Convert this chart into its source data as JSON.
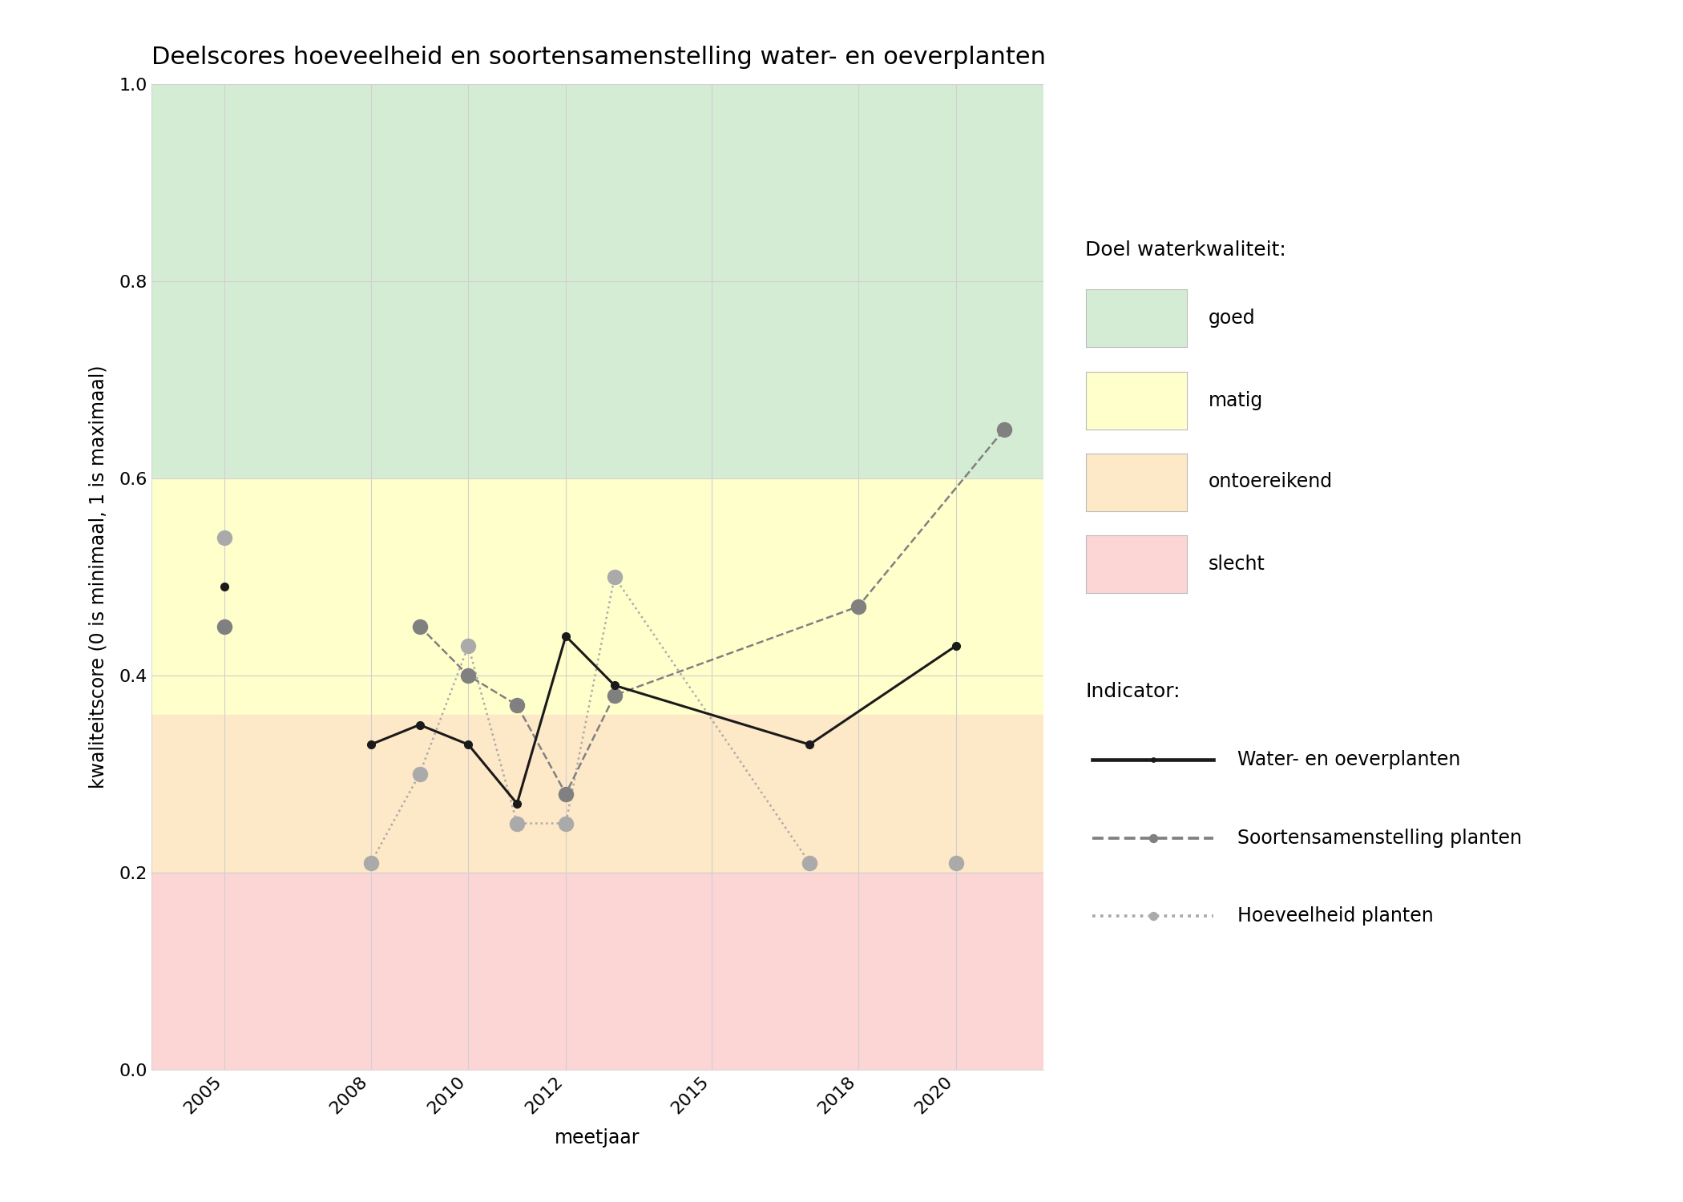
{
  "title": "Deelscores hoeveelheid en soortensamenstelling water- en oeverplanten",
  "xlabel": "meetjaar",
  "ylabel": "kwaliteitscore (0 is minimaal, 1 is maximaal)",
  "xlim": [
    2003.5,
    2021.8
  ],
  "ylim": [
    0.0,
    1.0
  ],
  "xticks": [
    2005,
    2008,
    2010,
    2012,
    2015,
    2018,
    2020
  ],
  "yticks": [
    0.0,
    0.2,
    0.4,
    0.6,
    0.8,
    1.0
  ],
  "bg_color": "#ffffff",
  "zones": [
    {
      "name": "goed",
      "ymin": 0.6,
      "ymax": 1.0,
      "color": "#d5ecd4"
    },
    {
      "name": "matig",
      "ymin": 0.36,
      "ymax": 0.6,
      "color": "#ffffcc"
    },
    {
      "name": "ontoereikend",
      "ymin": 0.2,
      "ymax": 0.36,
      "color": "#fde8c8"
    },
    {
      "name": "slecht",
      "ymin": 0.0,
      "ymax": 0.2,
      "color": "#fcd5d5"
    }
  ],
  "water_oever": {
    "years": [
      2005,
      2006,
      2008,
      2009,
      2010,
      2011,
      2012,
      2013,
      2017,
      2020
    ],
    "values": [
      0.49,
      null,
      0.33,
      0.35,
      0.33,
      0.27,
      0.44,
      0.39,
      0.33,
      0.43
    ],
    "color": "#1a1a1a",
    "linestyle": "-",
    "linewidth": 2.2,
    "markersize": 7
  },
  "soortensamenstelling": {
    "years": [
      2005,
      2006,
      2009,
      2010,
      2011,
      2012,
      2013,
      2018,
      2021
    ],
    "values": [
      0.45,
      null,
      0.45,
      0.4,
      0.37,
      0.28,
      0.38,
      0.47,
      0.65
    ],
    "color": "#808080",
    "linestyle": "--",
    "linewidth": 1.8,
    "markersize": 13
  },
  "hoeveelheid": {
    "years": [
      2005,
      2006,
      2008,
      2009,
      2010,
      2011,
      2012,
      2013,
      2017,
      2018,
      2020,
      2021
    ],
    "values": [
      0.54,
      null,
      0.21,
      0.3,
      0.43,
      0.25,
      0.25,
      0.5,
      0.21,
      null,
      0.21,
      null
    ],
    "color": "#aaaaaa",
    "linestyle": ":",
    "linewidth": 1.8,
    "markersize": 13
  },
  "grid_color": "#d0d0d0",
  "grid_linewidth": 0.8,
  "title_fontsize": 22,
  "axis_label_fontsize": 17,
  "tick_fontsize": 16,
  "legend_fontsize": 17,
  "legend_header_fontsize": 18
}
